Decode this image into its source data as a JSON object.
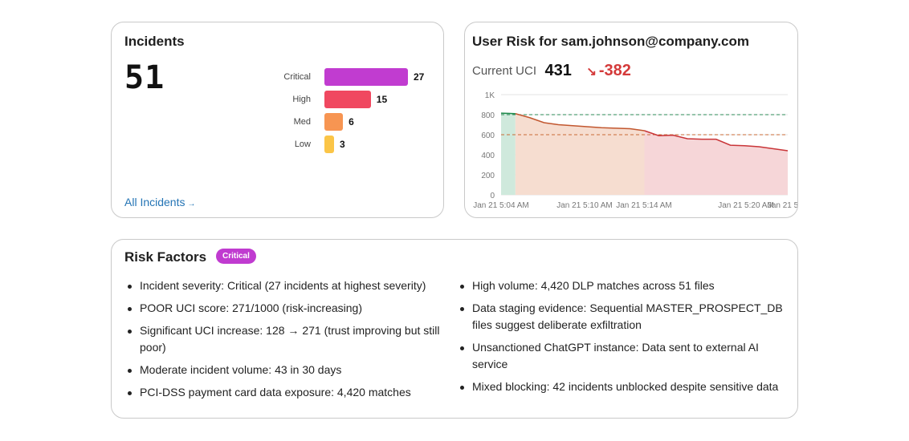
{
  "incidents": {
    "title": "Incidents",
    "total": "51",
    "link_label": "All Incidents",
    "link_arrow": "→",
    "bars": [
      {
        "label": "Critical",
        "value": 27,
        "color": "#c13cd0"
      },
      {
        "label": "High",
        "value": 15,
        "color": "#f04860"
      },
      {
        "label": "Med",
        "value": 6,
        "color": "#f79552"
      },
      {
        "label": "Low",
        "value": 3,
        "color": "#fbc547"
      }
    ]
  },
  "user_risk": {
    "title": "User Risk for sam.johnson@company.com",
    "current_label": "Current UCI",
    "current_value": "431",
    "delta_arrow": "↘",
    "delta_value": "-382"
  },
  "chart_data": {
    "type": "line",
    "y_ticks": [
      "0",
      "200",
      "400",
      "600",
      "800",
      "1K"
    ],
    "ylim": [
      0,
      1000
    ],
    "x_tick_labels": [
      "Jan 21 5:04 AM",
      "Jan 21 5:10 AM",
      "Jan 21 5:14 AM",
      "Jan 21 5:20 AM",
      "Jan 21 5"
    ],
    "threshold_lines": [
      {
        "value": 800,
        "color": "#2e8b57"
      },
      {
        "value": 600,
        "color": "#c96a36"
      }
    ],
    "series": [
      {
        "color_green": "#1f8a4c",
        "color_orange": "#c2572f",
        "color_red": "#c93538",
        "points": [
          [
            "5:04",
            815
          ],
          [
            "5:05",
            810
          ],
          [
            "5:06",
            770
          ],
          [
            "5:07",
            720
          ],
          [
            "5:08",
            700
          ],
          [
            "5:09",
            690
          ],
          [
            "5:10",
            680
          ],
          [
            "5:11",
            670
          ],
          [
            "5:12",
            665
          ],
          [
            "5:13",
            660
          ],
          [
            "5:14",
            640
          ],
          [
            "5:14b",
            590
          ],
          [
            "5:15",
            595
          ],
          [
            "5:16",
            560
          ],
          [
            "5:17",
            555
          ],
          [
            "5:18",
            555
          ],
          [
            "5:19",
            495
          ],
          [
            "5:20",
            490
          ],
          [
            "5:21",
            480
          ],
          [
            "5:22",
            460
          ],
          [
            "5:23",
            440
          ]
        ]
      }
    ],
    "zones": [
      {
        "from": 0,
        "to": 1,
        "color": "#cfe9dc"
      },
      {
        "from": 1,
        "to": 10,
        "color": "#f6ddd0"
      },
      {
        "from": 10,
        "to": 20,
        "color": "#f6d6d8"
      }
    ],
    "grid": true
  },
  "risk_factors": {
    "title": "Risk Factors",
    "badge": "Critical",
    "left": [
      "Incident severity: Critical (27 incidents at highest severity)",
      "POOR UCI score: 271/1000 (risk-increasing)",
      "Significant UCI increase: 128 → 271 (trust improving but still poor)",
      "Moderate incident volume: 43 in 30 days",
      "PCI-DSS payment card data exposure: 4,420 matches"
    ],
    "right": [
      "High volume: 4,420 DLP matches across 51 files",
      "Data staging evidence: Sequential MASTER_PROSPECT_DB files suggest deliberate exfiltration",
      "Unsanctioned ChatGPT instance: Data sent to external AI service",
      "Mixed blocking: 42 incidents unblocked despite sensitive data"
    ]
  }
}
